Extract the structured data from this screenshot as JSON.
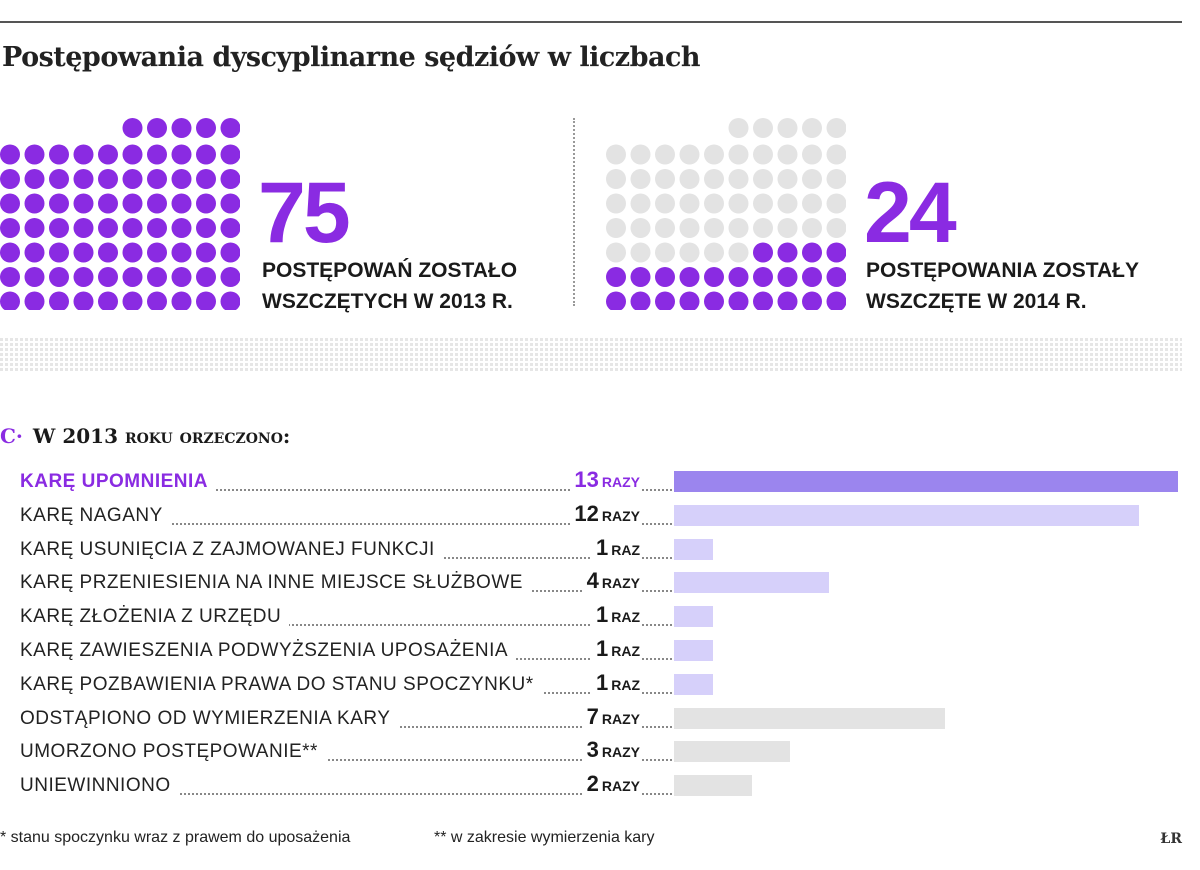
{
  "title": "Postępowania dyscyplinarne sędziów w liczbach",
  "colors": {
    "accent": "#8a2be2",
    "dot_grey": "#e3e3e3",
    "bar_top": "#9b85ee",
    "bar_purple": "#d6d0fa",
    "bar_grey": "#e3e3e3"
  },
  "stat_2013": {
    "number": "75",
    "caption_line1": "POSTĘPOWAŃ ZOSTAŁO",
    "caption_line2": "WSZCZĘTYCH W 2013 R."
  },
  "stat_2014": {
    "number": "24",
    "caption_line1": "POSTĘPOWANIA ZOSTAŁY",
    "caption_line2": "WSZCZĘTE W 2014 R."
  },
  "section": {
    "marker": "C·",
    "heading_prefix": "W 2013",
    "heading_rest": " roku orzeczono:"
  },
  "chart_data": {
    "type": "bar",
    "title": "W 2013 roku orzeczono:",
    "categories": [
      "KARĘ UPOMNIENIA",
      "KARĘ NAGANY",
      "KARĘ USUNIĘCIA Z ZAJMOWANEJ FUNKCJI",
      "KARĘ PRZENIESIENIA NA INNE MIEJSCE SŁUŻBOWE",
      "KARĘ ZŁOŻENIA Z URZĘDU",
      "KARĘ ZAWIESZENIA PODWYŻSZENIA UPOSAŻENIA",
      "KARĘ POZBAWIENIA PRAWA DO STANU SPOCZYNKU*",
      "ODSTĄPIONO OD WYMIERZENIA KARY",
      "UMORZONO POSTĘPOWANIE**",
      "UNIEWINNIONO"
    ],
    "values": [
      13,
      12,
      1,
      4,
      1,
      1,
      1,
      7,
      3,
      2
    ],
    "units": [
      "RAZY",
      "RAZY",
      "RAZ",
      "RAZY",
      "RAZ",
      "RAZ",
      "RAZ",
      "RAZY",
      "RAZY",
      "RAZY"
    ],
    "groups": [
      "top",
      "purple",
      "purple",
      "purple",
      "purple",
      "purple",
      "purple",
      "grey",
      "grey",
      "grey"
    ],
    "ylim": [
      0,
      13
    ],
    "dots": {
      "total_2013": 75,
      "total_2014": 24,
      "columns": 10
    }
  },
  "footnotes": {
    "note1": "* stanu spoczynku wraz z prawem do uposażenia",
    "note2": "** w zakresie wymierzenia kary"
  },
  "credit": "ŁR"
}
